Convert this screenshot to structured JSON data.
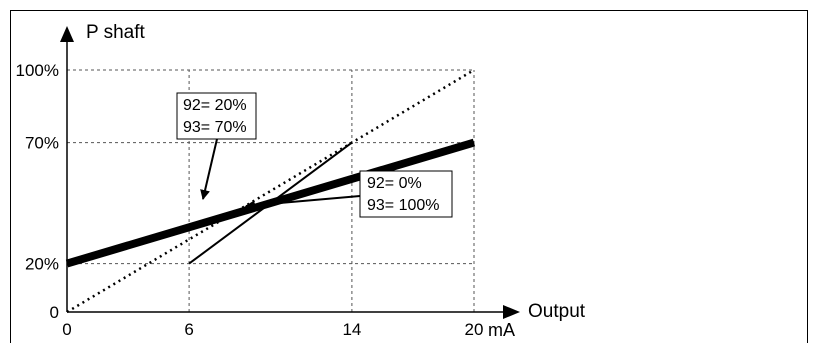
{
  "chart_data": {
    "type": "line",
    "xlabel": "Output",
    "x_unit": "mA",
    "ylabel": "P shaft",
    "xlim": [
      0,
      20
    ],
    "ylim": [
      0,
      100
    ],
    "x_ticks": [
      {
        "value": 0,
        "label": "0"
      },
      {
        "value": 6,
        "label": "6"
      },
      {
        "value": 14,
        "label": "14"
      },
      {
        "value": 20,
        "label": "20"
      }
    ],
    "y_ticks": [
      {
        "value": 0,
        "label": "0"
      },
      {
        "value": 20,
        "label": "20%"
      },
      {
        "value": 70,
        "label": "70%"
      },
      {
        "value": 100,
        "label": "100%"
      }
    ],
    "grid": true,
    "grid_x": [
      6,
      14,
      20
    ],
    "grid_y": [
      20,
      70,
      100
    ],
    "series": [
      {
        "points": [
          [
            0,
            20
          ],
          [
            20,
            70
          ]
        ],
        "style": "thick",
        "annotation": [
          "92= 20%",
          "93= 70%"
        ]
      },
      {
        "points": [
          [
            6,
            20
          ],
          [
            14,
            70
          ]
        ],
        "style": "thin",
        "annotation": [
          "92= 0%",
          "93= 100%"
        ]
      }
    ],
    "reference_line": {
      "points": [
        [
          0,
          0
        ],
        [
          20,
          100
        ]
      ],
      "style": "dotted"
    }
  }
}
